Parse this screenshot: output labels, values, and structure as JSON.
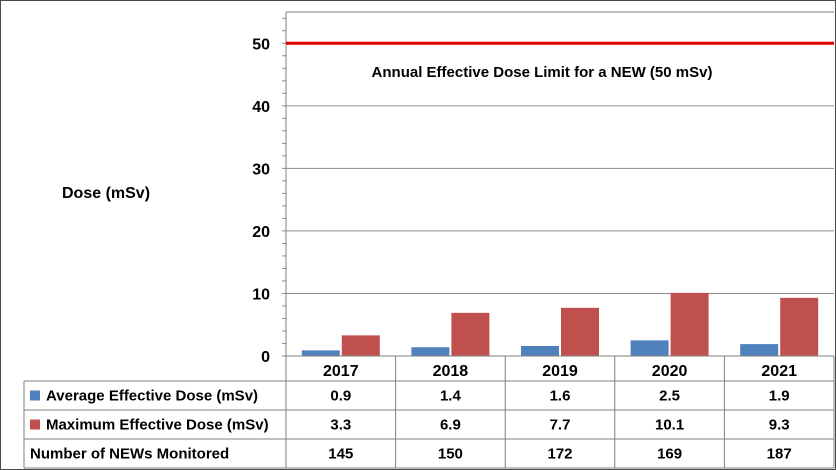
{
  "chart_data": {
    "type": "bar",
    "categories": [
      "2017",
      "2018",
      "2019",
      "2020",
      "2021"
    ],
    "series": [
      {
        "name": "Average Effective Dose (mSv)",
        "values": [
          0.9,
          1.4,
          1.6,
          2.5,
          1.9
        ],
        "color": "#4f81bd"
      },
      {
        "name": "Maximum Effective Dose (mSv)",
        "values": [
          3.3,
          6.9,
          7.7,
          10.1,
          9.3
        ],
        "color": "#c0504d"
      }
    ],
    "table_rows": [
      {
        "label": "Average Effective Dose (mSv)",
        "cells": [
          "0.9",
          "1.4",
          "1.6",
          "2.5",
          "1.9"
        ],
        "marker_color": "#4f81bd"
      },
      {
        "label": "Maximum Effective Dose (mSv)",
        "cells": [
          "3.3",
          "6.9",
          "7.7",
          "10.1",
          "9.3"
        ],
        "marker_color": "#c0504d"
      },
      {
        "label": "Number of NEWs Monitored",
        "cells": [
          "145",
          "150",
          "172",
          "169",
          "187"
        ]
      }
    ],
    "ylabel": "Dose (mSv)",
    "ylim": [
      0,
      55
    ],
    "yticks": [
      0,
      10,
      20,
      30,
      40,
      50
    ],
    "reference_line": {
      "value": 50,
      "label": "Annual Effective Dose Limit for a NEW (50 mSv)",
      "color": "#e00000"
    },
    "grid": true
  }
}
